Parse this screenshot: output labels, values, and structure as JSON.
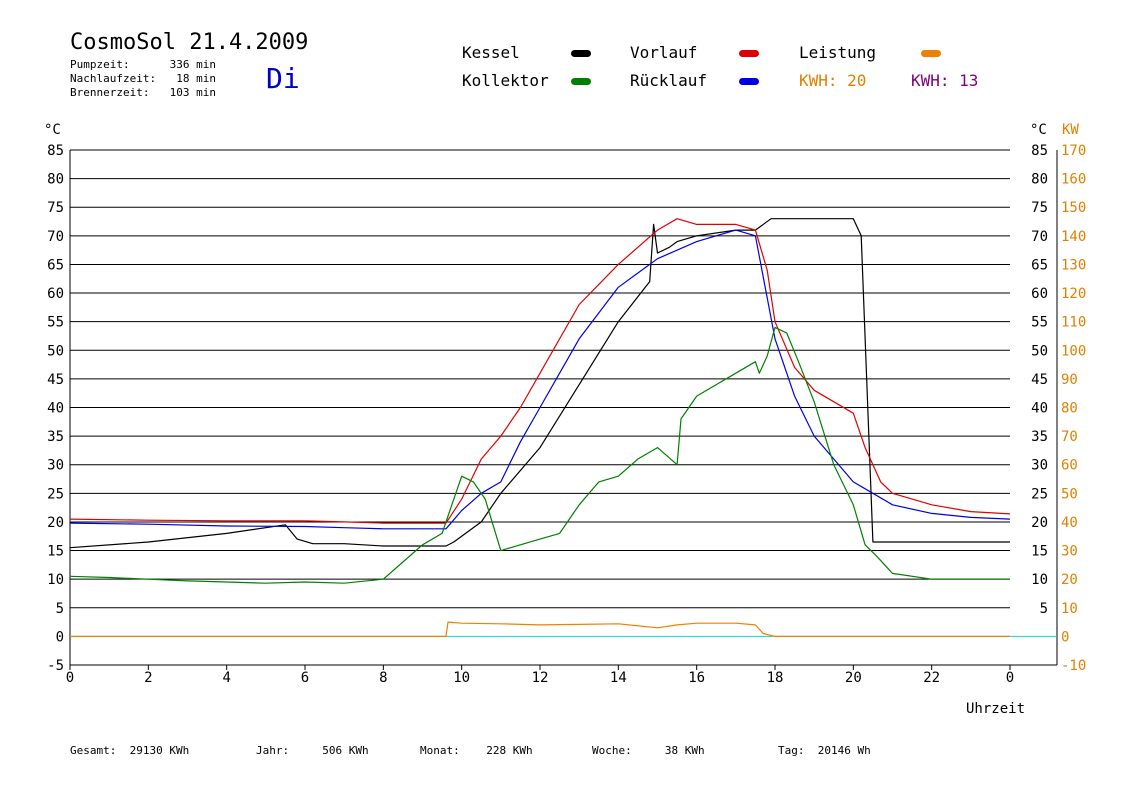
{
  "header": {
    "title": "CosmoSol 21.4.2009",
    "day": "Di",
    "stats": [
      {
        "label": "Pumpzeit:",
        "value": "336 min"
      },
      {
        "label": "Nachlaufzeit:",
        "value": "18 min"
      },
      {
        "label": "Brennerzeit:",
        "value": "103 min"
      }
    ]
  },
  "legend": [
    {
      "name": "Kessel",
      "color": "#000000"
    },
    {
      "name": "Kollektor",
      "color": "#008000"
    },
    {
      "name": "Vorlauf",
      "color": "#e00000"
    },
    {
      "name": "Rücklauf",
      "color": "#0000e0"
    },
    {
      "name": "Leistung",
      "color": "#f08000"
    }
  ],
  "kwh": [
    {
      "label": "KWH:",
      "value": "20",
      "color": "#e08000"
    },
    {
      "label": "KWH:",
      "value": "13",
      "color": "#800080"
    }
  ],
  "footer": [
    {
      "label": "Gesamt:",
      "value": "29130 KWh"
    },
    {
      "label": "Jahr:",
      "value": "506 KWh"
    },
    {
      "label": "Monat:",
      "value": "228 KWh"
    },
    {
      "label": "Woche:",
      "value": "38 KWh"
    },
    {
      "label": "Tag:",
      "value": "20146 Wh"
    }
  ],
  "chart_data": {
    "type": "line",
    "xlabel": "Uhrzeit",
    "ylabel_left": "°C",
    "ylabel_right": [
      "°C",
      "KW"
    ],
    "x_ticks": [
      "0",
      "2",
      "4",
      "6",
      "8",
      "10",
      "12",
      "14",
      "16",
      "18",
      "20",
      "22",
      "0"
    ],
    "y_ticks_left": [
      "-5",
      "0",
      "5",
      "10",
      "15",
      "20",
      "25",
      "30",
      "35",
      "40",
      "45",
      "50",
      "55",
      "60",
      "65",
      "70",
      "75",
      "80",
      "85"
    ],
    "y_ticks_right_c": [
      "5",
      "10",
      "15",
      "20",
      "25",
      "30",
      "35",
      "40",
      "45",
      "50",
      "55",
      "60",
      "65",
      "70",
      "75",
      "80",
      "85"
    ],
    "y_ticks_right_kw": [
      "-10",
      "0",
      "10",
      "20",
      "30",
      "40",
      "50",
      "60",
      "70",
      "80",
      "90",
      "100",
      "110",
      "120",
      "130",
      "140",
      "150",
      "160",
      "170"
    ],
    "xlim": [
      0,
      24
    ],
    "ylim": [
      -5,
      85
    ],
    "grid": true,
    "series": [
      {
        "name": "Kessel",
        "color": "#000000",
        "x": [
          0,
          2,
          4,
          5.5,
          5.8,
          6.2,
          7,
          8,
          9.6,
          9.8,
          10.5,
          11,
          12,
          13,
          14,
          14.8,
          14.9,
          15,
          15.3,
          15.5,
          16,
          17,
          17.5,
          17.9,
          18,
          19,
          19.7,
          20,
          20.2,
          20.5,
          21,
          22,
          23,
          24
        ],
        "y": [
          15.5,
          16.5,
          18,
          19.5,
          17,
          16.2,
          16.2,
          15.8,
          15.8,
          16.5,
          20,
          25,
          33,
          44,
          55,
          62,
          72,
          67,
          68,
          69,
          70,
          71,
          71,
          73,
          73,
          73,
          73,
          73,
          70,
          16.5,
          16.5,
          16.5,
          16.5,
          16.5
        ]
      },
      {
        "name": "Vorlauf",
        "color": "#e00000",
        "x": [
          0,
          2,
          4,
          6,
          7,
          8,
          9,
          9.6,
          10,
          10.5,
          11,
          11.5,
          12,
          13,
          14,
          15,
          15.5,
          16,
          17,
          17.5,
          17.8,
          18,
          18.5,
          19,
          20,
          20.3,
          20.7,
          21,
          22,
          23,
          24
        ],
        "y": [
          20.5,
          20.3,
          20.2,
          20.2,
          20,
          19.8,
          19.8,
          19.8,
          24,
          31,
          35,
          40,
          46,
          58,
          65,
          71,
          73,
          72,
          72,
          71,
          64,
          55,
          47,
          43,
          39,
          33,
          27,
          25,
          23,
          21.8,
          21.4
        ]
      },
      {
        "name": "Rücklauf",
        "color": "#0000e0",
        "x": [
          0,
          2,
          4,
          6,
          7,
          8,
          9,
          9.6,
          10,
          10.5,
          11,
          11.5,
          12,
          13,
          14,
          15,
          16,
          17,
          17.5,
          18,
          18.5,
          19,
          20,
          20.5,
          21,
          22,
          23,
          24
        ],
        "y": [
          19.8,
          19.6,
          19.3,
          19.2,
          19,
          18.8,
          18.8,
          18.8,
          22,
          25,
          27,
          34,
          40,
          52,
          61,
          66,
          69,
          71,
          70,
          52,
          42,
          35,
          27,
          25,
          23,
          21.5,
          20.8,
          20.5
        ]
      },
      {
        "name": "Kollektor",
        "color": "#008000",
        "x": [
          0,
          1,
          2,
          3,
          4,
          5,
          6,
          7,
          8,
          8.5,
          9,
          9.5,
          9.7,
          10,
          10.3,
          10.6,
          11,
          11.5,
          12,
          12.5,
          13,
          13.5,
          14,
          14.5,
          15,
          15.5,
          15.6,
          16,
          16.5,
          17,
          17.5,
          17.6,
          17.8,
          18,
          18.3,
          18.6,
          19,
          19.5,
          20,
          20.3,
          20.6,
          21,
          22,
          23,
          24
        ],
        "y": [
          10.5,
          10.3,
          10,
          9.7,
          9.5,
          9.3,
          9.5,
          9.3,
          10,
          13,
          16,
          18,
          22,
          28,
          27,
          24,
          15,
          16,
          17,
          18,
          23,
          27,
          28,
          31,
          33,
          30,
          38,
          42,
          44,
          46,
          48,
          46,
          49,
          54,
          53,
          48,
          41,
          30,
          23,
          16,
          14,
          11,
          10,
          10,
          10
        ]
      },
      {
        "name": "Leistung",
        "color": "#f08000",
        "x": [
          0,
          9.6,
          9.65,
          10,
          11,
          12,
          13,
          14,
          15,
          15.5,
          16,
          17,
          17.5,
          17.7,
          18,
          24
        ],
        "y": [
          0,
          0,
          2.5,
          2.3,
          2.2,
          2.0,
          2.1,
          2.2,
          1.5,
          2,
          2.3,
          2.3,
          2,
          0.5,
          0,
          0
        ]
      }
    ]
  }
}
